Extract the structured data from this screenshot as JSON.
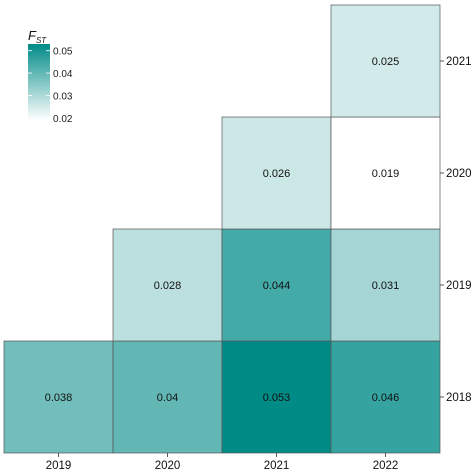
{
  "chart_data": {
    "type": "heatmap",
    "x_categories": [
      "2019",
      "2020",
      "2021",
      "2022"
    ],
    "y_categories": [
      "2018",
      "2019",
      "2020",
      "2021"
    ],
    "cells": [
      {
        "x": "2019",
        "y": "2018",
        "value": 0.038,
        "label": "0.038"
      },
      {
        "x": "2020",
        "y": "2018",
        "value": 0.04,
        "label": "0.04"
      },
      {
        "x": "2021",
        "y": "2018",
        "value": 0.053,
        "label": "0.053"
      },
      {
        "x": "2022",
        "y": "2018",
        "value": 0.046,
        "label": "0.046"
      },
      {
        "x": "2020",
        "y": "2019",
        "value": 0.028,
        "label": "0.028"
      },
      {
        "x": "2021",
        "y": "2019",
        "value": 0.044,
        "label": "0.044"
      },
      {
        "x": "2022",
        "y": "2019",
        "value": 0.031,
        "label": "0.031"
      },
      {
        "x": "2021",
        "y": "2020",
        "value": 0.026,
        "label": "0.026"
      },
      {
        "x": "2022",
        "y": "2020",
        "value": 0.019,
        "label": "0.019"
      },
      {
        "x": "2022",
        "y": "2021",
        "value": 0.025,
        "label": "0.025"
      }
    ],
    "x_axis_position": "bottom",
    "y_axis_position": "right",
    "legend": {
      "title_main": "F",
      "title_sub": "ST",
      "ticks": [
        "0.05",
        "0.04",
        "0.03",
        "0.02"
      ],
      "tick_values": [
        0.05,
        0.04,
        0.03,
        0.02
      ],
      "range": [
        0.019,
        0.053
      ],
      "placement": "top-left"
    },
    "color_low": "#ffffff",
    "color_high": "#008b87",
    "cell_border_color": "#555555",
    "grid": false
  }
}
